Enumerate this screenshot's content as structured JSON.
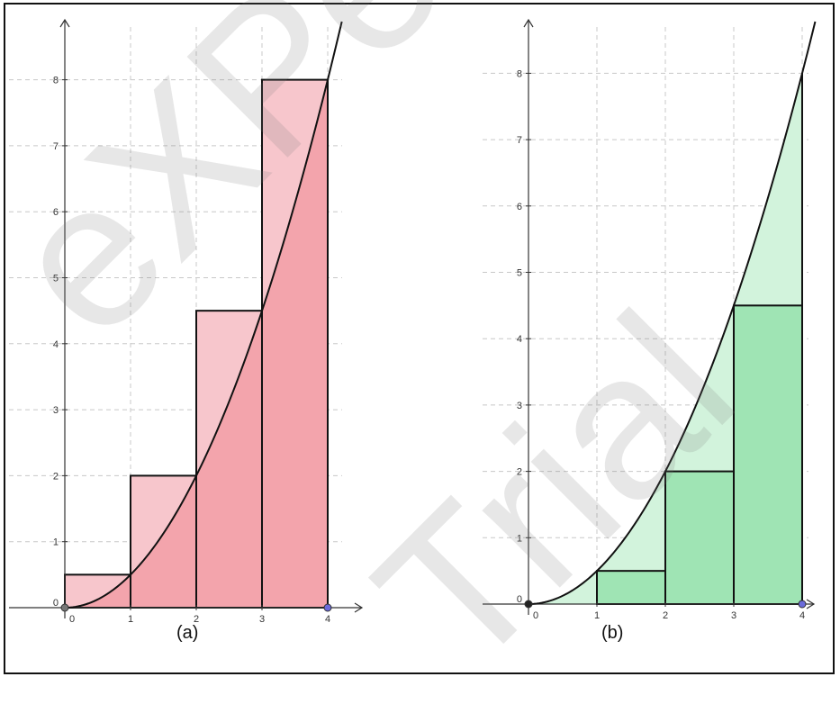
{
  "labels": {
    "panel_a": "(a)",
    "panel_b": "(b)"
  },
  "watermark": {
    "line1": "eXPert PDF",
    "line2": "Trial"
  },
  "colors": {
    "upper_rect": "#f7c6cc",
    "upper_under": "#f3a4ac",
    "lower_rect": "#9fe4b4",
    "lower_above": "#d2f3dc",
    "curve": "#111111",
    "grid": "#c8c8c8",
    "point": "#6b6bdb"
  },
  "chart_data": [
    {
      "type": "area",
      "panel": "(a)",
      "function": "y = x^2 / 2",
      "curve_samples": {
        "x": [
          0,
          0.5,
          1,
          1.5,
          2,
          2.5,
          3,
          3.5,
          4
        ],
        "y": [
          0,
          0.125,
          0.5,
          1.125,
          2,
          3.125,
          4.5,
          6.125,
          8
        ]
      },
      "rectangles": [
        {
          "x0": 0,
          "x1": 1,
          "height": 0.5
        },
        {
          "x0": 1,
          "x1": 2,
          "height": 2
        },
        {
          "x0": 2,
          "x1": 3,
          "height": 4.5
        },
        {
          "x0": 3,
          "x1": 4,
          "height": 8
        }
      ],
      "x_ticks": [
        0,
        1,
        2,
        3,
        4
      ],
      "y_ticks": [
        0,
        1,
        2,
        3,
        4,
        5,
        6,
        7,
        8
      ],
      "xlim": [
        -0.9,
        4.6
      ],
      "ylim": [
        -0.1,
        8.9
      ],
      "grid": true
    },
    {
      "type": "area",
      "panel": "(b)",
      "function": "y = x^2 / 2",
      "curve_samples": {
        "x": [
          0,
          0.5,
          1,
          1.5,
          2,
          2.5,
          3,
          3.5,
          4
        ],
        "y": [
          0,
          0.125,
          0.5,
          1.125,
          2,
          3.125,
          4.5,
          6.125,
          8
        ]
      },
      "rectangles": [
        {
          "x0": 1,
          "x1": 2,
          "height": 0.5
        },
        {
          "x0": 2,
          "x1": 3,
          "height": 2
        },
        {
          "x0": 3,
          "x1": 4,
          "height": 4.5
        }
      ],
      "x_ticks": [
        0,
        1,
        2,
        3,
        4
      ],
      "y_ticks": [
        0,
        1,
        2,
        3,
        4,
        5,
        6,
        7,
        8
      ],
      "xlim": [
        -0.3,
        4.3
      ],
      "ylim": [
        -0.1,
        8.8
      ],
      "grid": true
    }
  ]
}
